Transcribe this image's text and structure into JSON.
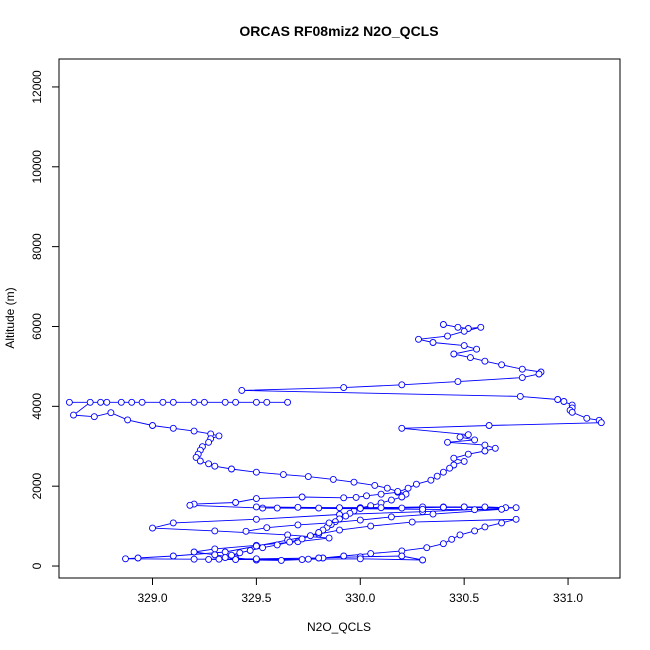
{
  "chart_data": {
    "type": "line",
    "title": "ORCAS RF08miz2 N2O_QCLS",
    "xlabel": "N2O_QCLS",
    "ylabel": "Altitude (m)",
    "xlim": [
      328.55,
      331.25
    ],
    "ylim": [
      -300,
      12700
    ],
    "x_ticks": [
      329.0,
      329.5,
      330.0,
      330.5,
      331.0
    ],
    "x_tick_labels": [
      "329.0",
      "329.5",
      "330.0",
      "330.5",
      "331.0"
    ],
    "y_ticks": [
      0,
      2000,
      4000,
      6000,
      8000,
      10000,
      12000
    ],
    "y_tick_labels": [
      "0",
      "2000",
      "4000",
      "6000",
      "8000",
      "10000",
      "12000"
    ],
    "grid": false,
    "series_color": "#0000ff",
    "marker": "open-circle",
    "series": [
      {
        "points": [
          [
            330.4,
            6050
          ],
          [
            330.47,
            5980
          ],
          [
            330.52,
            5950
          ],
          [
            330.58,
            5980
          ],
          [
            330.5,
            5880
          ],
          [
            330.42,
            5760
          ],
          [
            330.28,
            5680
          ],
          [
            330.35,
            5600
          ],
          [
            330.5,
            5520
          ],
          [
            330.56,
            5430
          ],
          [
            330.45,
            5310
          ],
          [
            330.53,
            5220
          ],
          [
            330.6,
            5130
          ],
          [
            330.68,
            5040
          ],
          [
            330.78,
            4930
          ],
          [
            330.87,
            4860
          ],
          [
            330.86,
            4810
          ],
          [
            330.78,
            4720
          ],
          [
            330.47,
            4620
          ],
          [
            330.2,
            4540
          ],
          [
            329.92,
            4470
          ],
          [
            329.43,
            4400
          ],
          [
            330.77,
            4250
          ],
          [
            330.95,
            4170
          ],
          [
            330.98,
            4120
          ],
          [
            331.02,
            4030
          ],
          [
            331.02,
            3960
          ],
          [
            331.01,
            3900
          ],
          [
            331.02,
            3850
          ],
          [
            331.09,
            3700
          ],
          [
            331.15,
            3650
          ],
          [
            331.16,
            3590
          ],
          [
            330.62,
            3520
          ],
          [
            330.2,
            3450
          ],
          [
            330.52,
            3290
          ],
          [
            330.48,
            3230
          ],
          [
            330.55,
            3160
          ],
          [
            330.42,
            3100
          ],
          [
            330.6,
            3030
          ],
          [
            330.65,
            2950
          ],
          [
            330.6,
            2880
          ],
          [
            330.52,
            2800
          ],
          [
            330.45,
            2700
          ],
          [
            330.5,
            2620
          ],
          [
            330.45,
            2530
          ],
          [
            330.43,
            2450
          ],
          [
            330.4,
            2350
          ],
          [
            330.37,
            2250
          ],
          [
            330.34,
            2150
          ],
          [
            330.27,
            2050
          ],
          [
            330.23,
            1950
          ],
          [
            330.18,
            1850
          ],
          [
            330.1,
            1800
          ],
          [
            330.03,
            1760
          ],
          [
            329.98,
            1720
          ],
          [
            329.92,
            1710
          ],
          [
            329.72,
            1730
          ],
          [
            329.5,
            1690
          ],
          [
            329.4,
            1590
          ],
          [
            329.2,
            1550
          ],
          [
            329.18,
            1520
          ],
          [
            329.53,
            1450
          ],
          [
            330.0,
            1460
          ],
          [
            330.5,
            1480
          ],
          [
            330.75,
            1460
          ],
          [
            330.3,
            1360
          ],
          [
            329.9,
            1290
          ],
          [
            329.5,
            1170
          ],
          [
            329.1,
            1080
          ],
          [
            329.0,
            950
          ],
          [
            329.3,
            880
          ],
          [
            329.65,
            780
          ],
          [
            329.85,
            700
          ],
          [
            329.7,
            610
          ],
          [
            329.5,
            520
          ],
          [
            329.3,
            430
          ],
          [
            329.2,
            350
          ],
          [
            329.3,
            280
          ],
          [
            329.4,
            200
          ],
          [
            329.5,
            150
          ],
          [
            329.62,
            140
          ],
          [
            329.72,
            160
          ],
          [
            329.82,
            200
          ],
          [
            329.92,
            250
          ],
          [
            330.05,
            310
          ],
          [
            330.2,
            380
          ],
          [
            330.32,
            460
          ],
          [
            330.4,
            560
          ],
          [
            330.44,
            670
          ],
          [
            330.48,
            780
          ],
          [
            330.55,
            880
          ],
          [
            330.6,
            980
          ],
          [
            330.68,
            1080
          ],
          [
            330.75,
            1170
          ],
          [
            330.25,
            1100
          ],
          [
            330.05,
            1000
          ],
          [
            329.9,
            900
          ],
          [
            329.8,
            800
          ],
          [
            329.65,
            650
          ],
          [
            329.5,
            500
          ],
          [
            329.35,
            350
          ],
          [
            329.1,
            250
          ],
          [
            328.93,
            200
          ],
          [
            328.87,
            180
          ],
          [
            329.2,
            170
          ],
          [
            329.5,
            180
          ],
          [
            329.8,
            200
          ],
          [
            330.0,
            230
          ],
          [
            330.2,
            250
          ],
          [
            330.3,
            150
          ],
          [
            330.0,
            180
          ],
          [
            329.75,
            170
          ],
          [
            329.4,
            160
          ],
          [
            329.27,
            165
          ]
        ]
      },
      {
        "points": [
          [
            328.6,
            4100
          ],
          [
            328.75,
            4100
          ],
          [
            328.9,
            4100
          ],
          [
            329.05,
            4100
          ],
          [
            329.2,
            4100
          ],
          [
            329.35,
            4100
          ],
          [
            329.5,
            4100
          ],
          [
            329.65,
            4100
          ],
          [
            329.55,
            4100
          ],
          [
            329.4,
            4100
          ],
          [
            329.25,
            4100
          ],
          [
            329.1,
            4100
          ],
          [
            328.95,
            4100
          ],
          [
            328.85,
            4100
          ],
          [
            328.78,
            4100
          ],
          [
            328.7,
            4100
          ],
          [
            328.62,
            3780
          ],
          [
            328.72,
            3740
          ],
          [
            328.8,
            3840
          ],
          [
            328.88,
            3660
          ],
          [
            329.0,
            3520
          ],
          [
            329.1,
            3450
          ],
          [
            329.2,
            3380
          ],
          [
            329.28,
            3310
          ],
          [
            329.32,
            3260
          ],
          [
            329.28,
            3190
          ],
          [
            329.27,
            3100
          ],
          [
            329.24,
            2990
          ],
          [
            329.23,
            2900
          ],
          [
            329.22,
            2800
          ],
          [
            329.21,
            2720
          ],
          [
            329.23,
            2630
          ],
          [
            329.27,
            2560
          ],
          [
            329.3,
            2500
          ],
          [
            329.38,
            2430
          ],
          [
            329.5,
            2350
          ],
          [
            329.63,
            2290
          ],
          [
            329.75,
            2240
          ],
          [
            329.87,
            2170
          ],
          [
            329.97,
            2100
          ],
          [
            330.07,
            2020
          ],
          [
            330.13,
            1950
          ],
          [
            330.18,
            1870
          ],
          [
            330.22,
            1800
          ],
          [
            330.2,
            1730
          ],
          [
            330.15,
            1650
          ],
          [
            330.1,
            1580
          ],
          [
            330.05,
            1510
          ],
          [
            330.0,
            1450
          ],
          [
            329.97,
            1380
          ],
          [
            329.95,
            1320
          ],
          [
            329.93,
            1250
          ],
          [
            329.9,
            1180
          ],
          [
            329.88,
            1110
          ],
          [
            329.86,
            1040
          ],
          [
            329.84,
            970
          ],
          [
            329.82,
            900
          ],
          [
            329.8,
            840
          ],
          [
            329.76,
            760
          ],
          [
            329.72,
            680
          ],
          [
            329.66,
            600
          ],
          [
            329.6,
            530
          ],
          [
            329.53,
            460
          ],
          [
            329.47,
            390
          ],
          [
            329.42,
            330
          ],
          [
            329.38,
            270
          ],
          [
            329.35,
            210
          ],
          [
            329.32,
            170
          ]
        ]
      },
      {
        "points": [
          [
            329.5,
            1480
          ],
          [
            329.7,
            1470
          ],
          [
            329.9,
            1460
          ],
          [
            330.1,
            1460
          ],
          [
            330.3,
            1480
          ],
          [
            330.4,
            1480
          ],
          [
            330.5,
            1480
          ],
          [
            330.6,
            1480
          ],
          [
            330.7,
            1460
          ],
          [
            330.4,
            1470
          ],
          [
            330.2,
            1450
          ],
          [
            330.0,
            1440
          ],
          [
            329.8,
            1450
          ],
          [
            329.6,
            1450
          ],
          [
            330.3,
            1420
          ],
          [
            330.55,
            1410
          ],
          [
            330.68,
            1420
          ],
          [
            330.35,
            1300
          ],
          [
            330.15,
            1230
          ],
          [
            330.0,
            1150
          ],
          [
            329.85,
            1080
          ],
          [
            329.7,
            1030
          ],
          [
            329.55,
            960
          ],
          [
            329.45,
            870
          ]
        ]
      }
    ]
  }
}
